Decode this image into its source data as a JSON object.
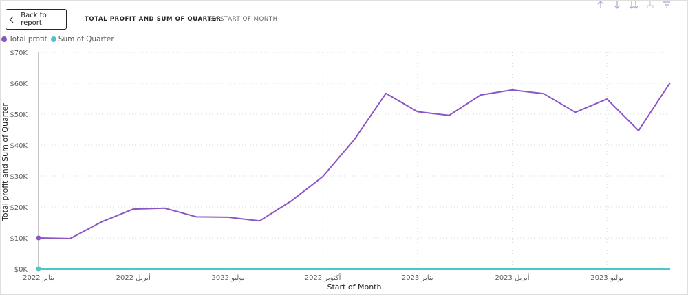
{
  "header": {
    "back_label": "Back to report",
    "title": "TOTAL PROFIT AND SUM OF QUARTER",
    "subtitle": "BY START OF MONTH"
  },
  "toolbar": {
    "icons": [
      "arrow-up-icon",
      "arrow-down-icon",
      "double-arrow-down-icon",
      "expand-hierarchy-icon",
      "filter-icon"
    ]
  },
  "colors": {
    "total_profit": "#8a55c4",
    "sum_of_quarter": "#4ec5c9",
    "grid": "#d9d9d9",
    "axis_text": "#605e5c"
  },
  "chart_data": {
    "type": "line",
    "title": "TOTAL PROFIT AND SUM OF QUARTER BY START OF MONTH",
    "xlabel": "Start of Month",
    "ylabel": "Total profit and Sum of Quarter",
    "legend_position": "top-left",
    "grid": true,
    "x": [
      "2022-01",
      "2022-02",
      "2022-03",
      "2022-04",
      "2022-05",
      "2022-06",
      "2022-07",
      "2022-08",
      "2022-09",
      "2022-10",
      "2022-11",
      "2022-12",
      "2023-01",
      "2023-02",
      "2023-03",
      "2023-04",
      "2023-05",
      "2023-06",
      "2023-07",
      "2023-08",
      "2023-09"
    ],
    "x_ticks": [
      {
        "at": "2022-01",
        "label": "يناير 2022"
      },
      {
        "at": "2022-04",
        "label": "أبريل 2022"
      },
      {
        "at": "2022-07",
        "label": "يوليو 2022"
      },
      {
        "at": "2022-10",
        "label": "أكتوبر 2022"
      },
      {
        "at": "2023-01",
        "label": "يناير 2023"
      },
      {
        "at": "2023-04",
        "label": "أبريل 2023"
      },
      {
        "at": "2023-07",
        "label": "يوليو 2023"
      }
    ],
    "ylim": [
      0,
      70000
    ],
    "y_ticks": [
      {
        "value": 0,
        "label": "$0K"
      },
      {
        "value": 10000,
        "label": "$10K"
      },
      {
        "value": 20000,
        "label": "$20K"
      },
      {
        "value": 30000,
        "label": "$30K"
      },
      {
        "value": 40000,
        "label": "$40K"
      },
      {
        "value": 50000,
        "label": "$50K"
      },
      {
        "value": 60000,
        "label": "$60K"
      },
      {
        "value": 70000,
        "label": "$70K"
      }
    ],
    "series": [
      {
        "name": "Total profit",
        "color": "#8a55c4",
        "values": [
          10000,
          9800,
          15200,
          19300,
          19600,
          16800,
          16700,
          15500,
          21900,
          29800,
          41800,
          56700,
          50800,
          49600,
          56200,
          57800,
          56600,
          50600,
          54900,
          44700,
          60200
        ]
      },
      {
        "name": "Sum of Quarter",
        "color": "#4ec5c9",
        "values": [
          0,
          0,
          0,
          0,
          0,
          0,
          0,
          0,
          0,
          0,
          0,
          0,
          0,
          0,
          0,
          0,
          0,
          0,
          0,
          0,
          0
        ]
      }
    ]
  }
}
